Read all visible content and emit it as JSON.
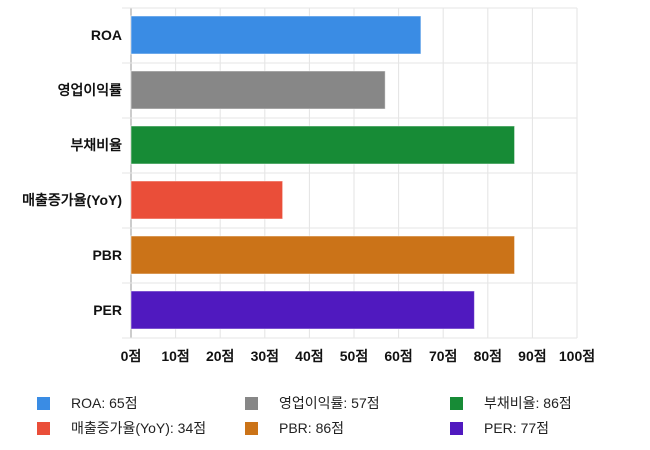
{
  "chart_data": {
    "type": "bar",
    "orientation": "horizontal",
    "categories": [
      "ROA",
      "영업이익률",
      "부채비율",
      "매출증가율(YoY)",
      "PBR",
      "PER"
    ],
    "values": [
      65,
      57,
      86,
      34,
      86,
      77
    ],
    "colors": [
      "#3a8ce4",
      "#878787",
      "#178b36",
      "#ea4e39",
      "#cb7318",
      "#5019bf"
    ],
    "xlim": [
      0,
      100
    ],
    "xticks": [
      "0점",
      "10점",
      "20점",
      "30점",
      "40점",
      "50점",
      "60점",
      "70점",
      "80점",
      "90점",
      "100점"
    ],
    "grid": true,
    "legend_position": "bottom",
    "legend": [
      "ROA: 65점",
      "영업이익률: 57점",
      "부채비율: 86점",
      "매출증가율(YoY): 34점",
      "PBR: 86점",
      "PER: 77점"
    ]
  }
}
